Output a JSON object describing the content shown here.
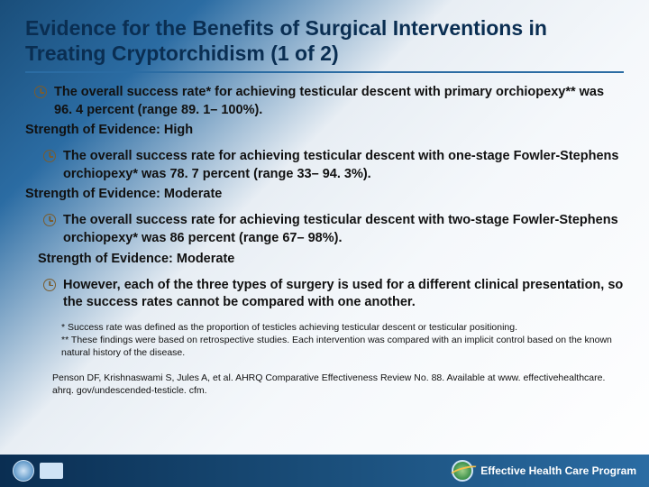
{
  "colors": {
    "title": "#0a2e52",
    "rule": "#2b6ca3",
    "body": "#111111",
    "footer_grad_start": "#0a2e52",
    "footer_grad_end": "#2b6ca3",
    "clock": "#7a5c2e"
  },
  "title": "Evidence for the Benefits of Surgical Interventions in Treating Cryptorchidism (1 of 2)",
  "bullets": [
    {
      "indent": "indent-a",
      "text": "The overall success rate* for achieving testicular descent with primary orchiopexy** was 96. 4 percent (range 89. 1– 100%).",
      "soe": "Strength of Evidence: High"
    },
    {
      "indent": "indent-b",
      "text": "The overall success rate for achieving testicular descent with one-stage Fowler-Stephens orchiopexy* was 78. 7 percent (range 33– 94. 3%).",
      "soe": "Strength of Evidence: Moderate"
    },
    {
      "indent": "indent-b",
      "text": "The overall success rate for achieving testicular descent with two-stage Fowler-Stephens orchiopexy* was 86 percent (range 67– 98%).",
      "soe": "Strength of Evidence: Moderate",
      "soe_indent": "indent-c"
    },
    {
      "indent": "indent-b",
      "text": "However, each of the three types of surgery is used for a different clinical presentation, so the success rates cannot be compared with one another."
    }
  ],
  "footnote_1": "* Success rate was defined as the proportion of testicles achieving testicular descent or testicular positioning.",
  "footnote_2": "** These findings were based on retrospective studies. Each intervention was compared with an implicit control based on the known natural history of the disease.",
  "citation": "Penson DF, Krishnaswami S, Jules A, et al. AHRQ Comparative Effectiveness Review No. 88. Available at www. effectivehealthcare. ahrq. gov/undescended-testicle. cfm.",
  "footer": {
    "program": "Effective Health Care Program"
  }
}
